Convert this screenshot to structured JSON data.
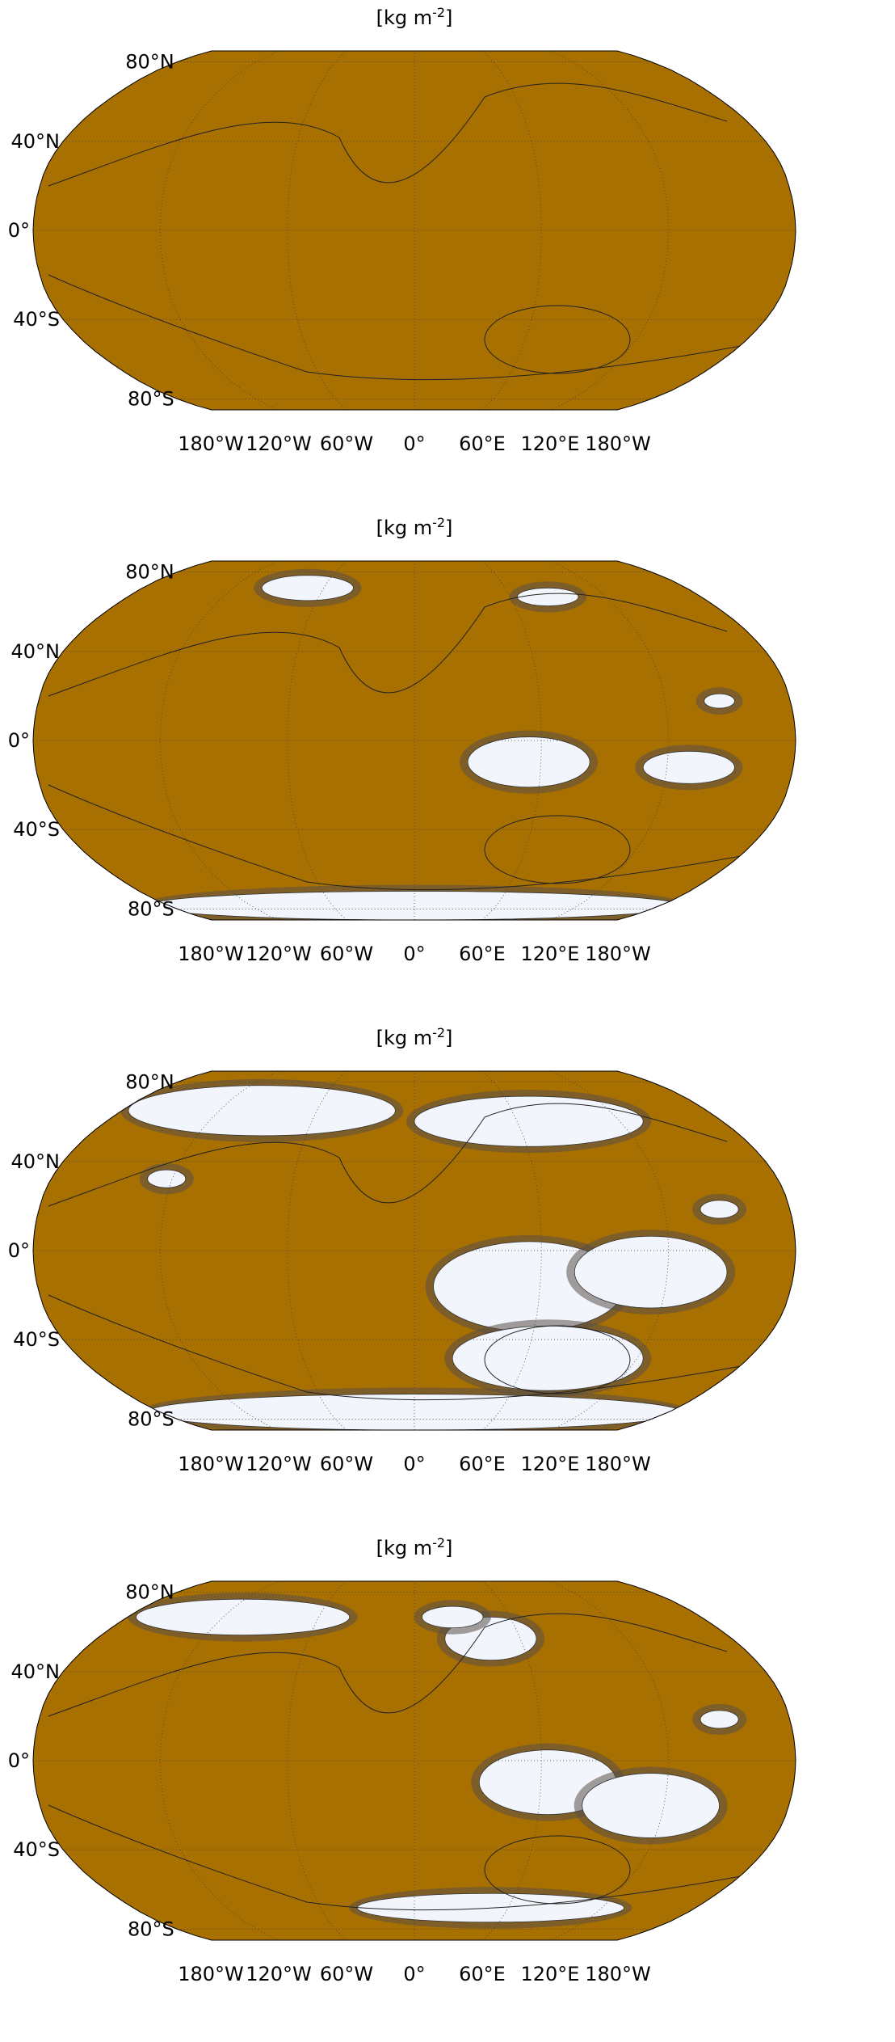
{
  "panels": [
    {
      "title": {
        "text": "[kg m",
        "exponent": "-2",
        "close": "]"
      },
      "lat_labels": [
        "80°N",
        "40°N",
        "0°",
        "40°S",
        "80°S"
      ],
      "lon_labels": [
        "180°W",
        "120°W",
        "60°W",
        "0°",
        "60°E",
        "120°E",
        "180°W"
      ]
    },
    {
      "title": {
        "text": "[kg m",
        "exponent": "-2",
        "close": "]"
      },
      "lat_labels": [
        "80°N",
        "40°N",
        "0°",
        "40°S",
        "80°S"
      ],
      "lon_labels": [
        "180°W",
        "120°W",
        "60°W",
        "0°",
        "60°E",
        "120°E",
        "180°W"
      ]
    },
    {
      "title": {
        "text": "[kg m",
        "exponent": "-2",
        "close": "]"
      },
      "lat_labels": [
        "80°N",
        "40°N",
        "0°",
        "40°S",
        "80°S"
      ],
      "lon_labels": [
        "180°W",
        "120°W",
        "60°W",
        "0°",
        "60°E",
        "120°E",
        "180°W"
      ]
    },
    {
      "title": {
        "text": "[kg m",
        "exponent": "-2",
        "close": "]"
      },
      "lat_labels": [
        "80°N",
        "40°N",
        "0°",
        "40°S",
        "80°S"
      ],
      "lon_labels": [
        "180°W",
        "120°W",
        "60°W",
        "0°",
        "60°E",
        "120°E",
        "180°W"
      ]
    }
  ]
}
